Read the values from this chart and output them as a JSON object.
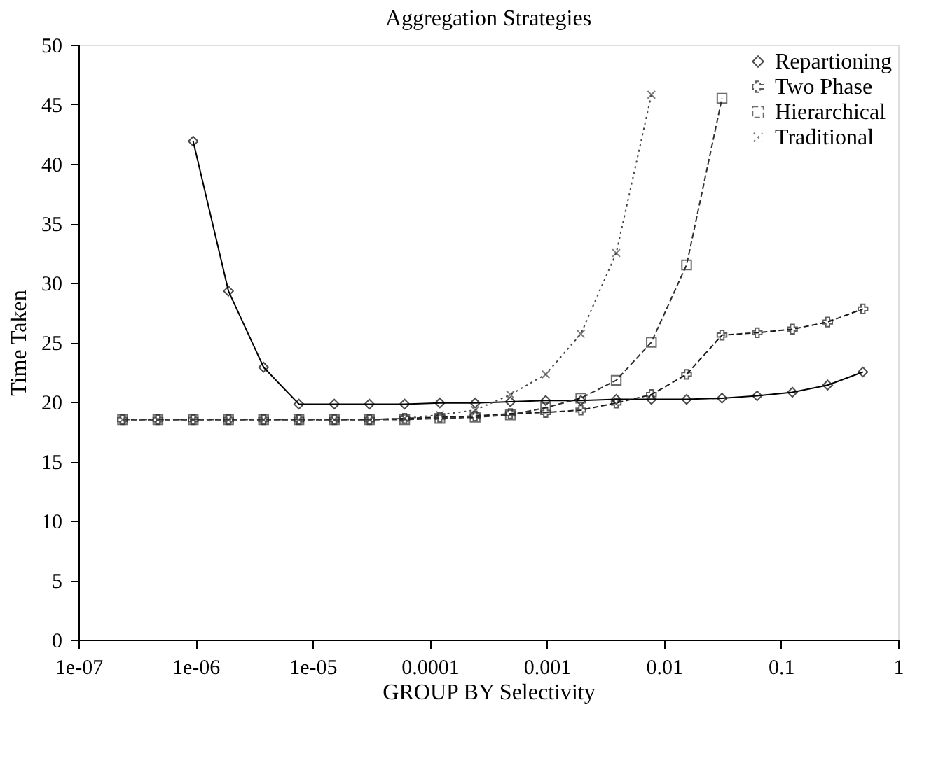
{
  "chart_data": {
    "type": "line",
    "title": "Aggregation Strategies",
    "xlabel": "GROUP BY Selectivity",
    "ylabel": "Time Taken",
    "x": [
      2.38e-07,
      4.77e-07,
      9.54e-07,
      1.91e-06,
      3.81e-06,
      7.63e-06,
      1.53e-05,
      3.05e-05,
      6.1e-05,
      0.000122,
      0.000244,
      0.000488,
      0.000977,
      0.00195,
      0.00391,
      0.00781,
      0.0156,
      0.0313,
      0.0625,
      0.125,
      0.25,
      0.5
    ],
    "series": [
      {
        "name": "Repartioning",
        "color": "#000000",
        "marker": "diamond",
        "line_style": "solid",
        "values": [
          null,
          null,
          41.9,
          29.3,
          22.9,
          19.8,
          19.8,
          19.8,
          19.8,
          19.9,
          19.9,
          20.0,
          20.1,
          20.1,
          20.2,
          20.2,
          20.2,
          20.3,
          20.5,
          20.8,
          21.4,
          22.5
        ]
      },
      {
        "name": "Two Phase",
        "color": "#1a1a1a",
        "marker": "plus",
        "line_style": "dashed",
        "values": [
          18.5,
          18.5,
          18.5,
          18.5,
          18.5,
          18.5,
          18.5,
          18.5,
          18.6,
          18.7,
          18.8,
          19.0,
          19.1,
          19.3,
          19.9,
          20.6,
          22.3,
          25.6,
          25.8,
          26.1,
          26.7,
          27.8
        ]
      },
      {
        "name": "Hierarchical",
        "color": "#2e2e2e",
        "marker": "square",
        "line_style": "dashed",
        "values": [
          18.5,
          18.5,
          18.5,
          18.5,
          18.5,
          18.5,
          18.5,
          18.5,
          18.5,
          18.6,
          18.7,
          18.9,
          19.5,
          20.3,
          21.8,
          25.0,
          31.5,
          45.5,
          null,
          null,
          null,
          null
        ]
      },
      {
        "name": "Traditional",
        "color": "#444444",
        "marker": "cross",
        "line_style": "dotted",
        "values": [
          18.5,
          18.5,
          18.5,
          18.5,
          18.5,
          18.5,
          18.5,
          18.5,
          18.6,
          18.9,
          19.3,
          20.6,
          22.3,
          25.7,
          32.5,
          45.8,
          null,
          null,
          null,
          null,
          null,
          null
        ]
      }
    ],
    "xlim": [
      1e-07,
      1
    ],
    "ylim": [
      0,
      50
    ],
    "xticks": [
      {
        "value": 1e-07,
        "label": "1e-07"
      },
      {
        "value": 1e-06,
        "label": "1e-06"
      },
      {
        "value": 1e-05,
        "label": "1e-05"
      },
      {
        "value": 0.0001,
        "label": "0.0001"
      },
      {
        "value": 0.001,
        "label": "0.001"
      },
      {
        "value": 0.01,
        "label": "0.01"
      },
      {
        "value": 0.1,
        "label": "0.1"
      },
      {
        "value": 1,
        "label": "1"
      }
    ],
    "yticks": [
      0,
      5,
      10,
      15,
      20,
      25,
      30,
      35,
      40,
      45,
      50
    ],
    "log": "x",
    "grid": false,
    "legend": "top right"
  }
}
